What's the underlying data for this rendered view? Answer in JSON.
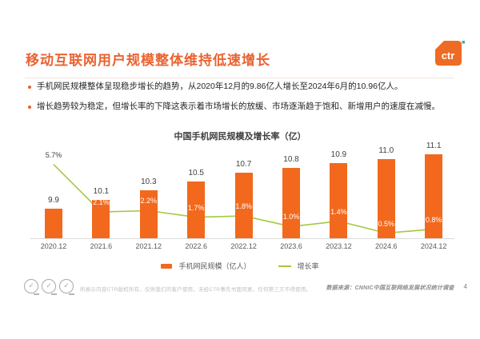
{
  "slide": {
    "title": "移动互联网用户规模整体维持低速增长",
    "logo_text": "ctr",
    "page_number": "4",
    "bullets": [
      "手机网民规模整体呈现稳步增长的趋势，从2020年12月的9.86亿人增长至2024年6月的10.96亿人。",
      "增长趋势较为稳定，但增长率的下降这表示着市场增长的放缓、市场逐渐趋于饱和、新增用户的速度在减慢。"
    ],
    "footer": {
      "disclaimer": "所展示内容CTR版权所有，仅供我们的客户使用，未经CTR事先书面同意，任何第三方不得使用。",
      "data_source": "数据来源：CNNIC中国互联网络发展状况统计调查"
    }
  },
  "colors": {
    "title_orange": "#EA6230",
    "bar_orange": "#F2691D",
    "line_green": "#A5C83E",
    "logo_orange": "#EE6B23",
    "logo_dot_teal": "#3BAFA8"
  },
  "chart_data": {
    "type": "bar",
    "title": "中国手机网民规模及增长率（亿）",
    "categories": [
      "2020.12",
      "2021.6",
      "2021.12",
      "2022.6",
      "2022.12",
      "2023.6",
      "2023.12",
      "2024.6",
      "2024.12"
    ],
    "series": [
      {
        "name": "手机网民规模（亿人）",
        "type": "bar",
        "values": [
          9.9,
          10.1,
          10.3,
          10.5,
          10.7,
          10.8,
          10.9,
          11.0,
          11.1
        ],
        "labels": [
          "9.9",
          "10.1",
          "10.3",
          "10.5",
          "10.7",
          "10.8",
          "10.9",
          "11.0",
          "11.1"
        ],
        "color": "#F2691D"
      },
      {
        "name": "增长率",
        "type": "line",
        "values": [
          5.7,
          2.1,
          2.2,
          1.7,
          1.8,
          1.0,
          1.4,
          0.5,
          0.8
        ],
        "labels": [
          "5.7%",
          "2.1%",
          "2.2%",
          "1.7%",
          "1.8%",
          "1.0%",
          "1.4%",
          "0.5%",
          "0.8%"
        ],
        "color": "#A5C83E"
      }
    ],
    "bar_axis_implied_min": 9.25,
    "line_axis_unit": "percent",
    "grid": false,
    "legend_position": "bottom"
  }
}
